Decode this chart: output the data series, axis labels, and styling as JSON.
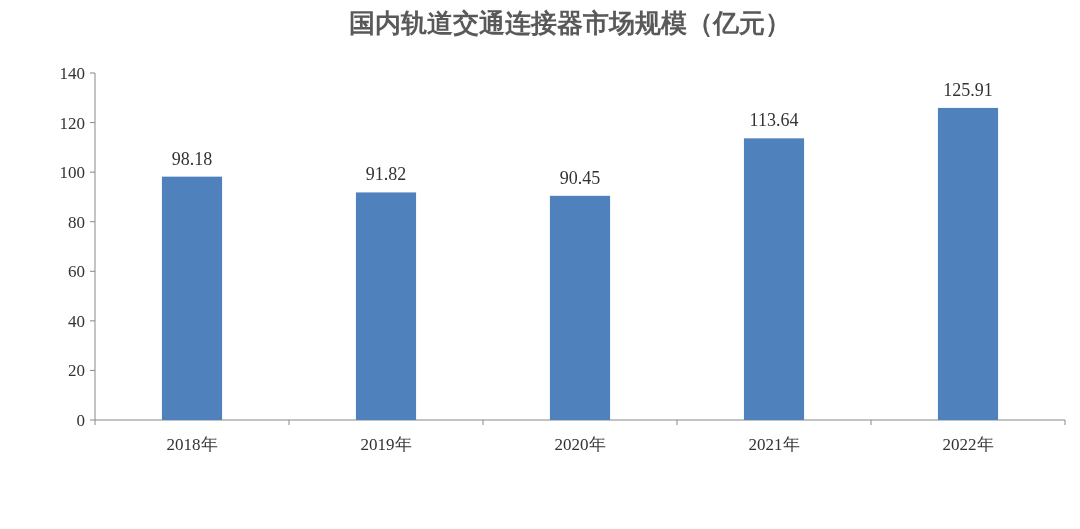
{
  "chart_data": {
    "type": "bar",
    "title": "国内轨道交通连接器市场规模（亿元）",
    "categories": [
      "2018年",
      "2019年",
      "2020年",
      "2021年",
      "2022年"
    ],
    "values": [
      98.18,
      91.82,
      90.45,
      113.64,
      125.91
    ],
    "color": "#4f81bd",
    "ylim": [
      0,
      140
    ],
    "yticks": [
      0,
      20,
      40,
      60,
      80,
      100,
      120,
      140
    ],
    "data_labels": true
  }
}
